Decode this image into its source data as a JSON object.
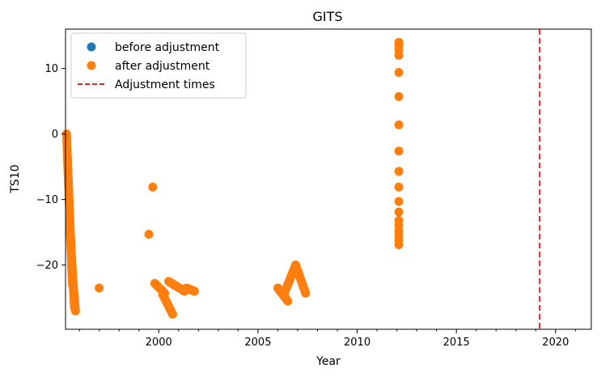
{
  "chart_data": {
    "type": "scatter",
    "title": "GITS",
    "xlabel": "Year",
    "ylabel": "TS10",
    "xlim": [
      1995.3,
      2021.8
    ],
    "ylim": [
      -29.8,
      16
    ],
    "x_ticks": [
      2000,
      2005,
      2010,
      2015,
      2020
    ],
    "y_ticks": [
      -20,
      -10,
      0,
      10
    ],
    "x_minor_tick_step": 1,
    "grid": false,
    "legend_position": "top-left",
    "colors": {
      "before": "#1f77b4",
      "after": "#ff7f0e",
      "adjustment": "#d62728"
    },
    "legend": [
      {
        "label": "before adjustment",
        "marker": "circle",
        "color": "#1f77b4"
      },
      {
        "label": "after adjustment",
        "marker": "circle",
        "color": "#ff7f0e"
      },
      {
        "label": "Adjustment times",
        "marker": "dashed-line",
        "color": "#d62728"
      }
    ],
    "adjustment_times": [
      2019.2
    ],
    "segments": [
      {
        "x_start": 1995.35,
        "x_end": 1995.65,
        "y_start": 0,
        "y_end": -23,
        "n": 60
      },
      {
        "x_start": 1995.5,
        "x_end": 1995.75,
        "y_start": -13,
        "y_end": -26.5,
        "n": 40
      },
      {
        "x_start": 1995.6,
        "x_end": 1995.8,
        "y_start": -20,
        "y_end": -27,
        "n": 30
      },
      {
        "x_start": 2000.2,
        "x_end": 2000.7,
        "y_start": -24.5,
        "y_end": -27.5,
        "n": 12
      },
      {
        "x_start": 1999.8,
        "x_end": 2000.3,
        "y_start": -22.8,
        "y_end": -24.3,
        "n": 10
      },
      {
        "x_start": 2000.5,
        "x_end": 2001.3,
        "y_start": -22.5,
        "y_end": -24,
        "n": 18
      },
      {
        "x_start": 2001.4,
        "x_end": 2001.8,
        "y_start": -23.5,
        "y_end": -24,
        "n": 10
      },
      {
        "x_start": 2006.0,
        "x_end": 2006.5,
        "y_start": -23.5,
        "y_end": -25.5,
        "n": 20
      },
      {
        "x_start": 2006.3,
        "x_end": 2006.9,
        "y_start": -24.5,
        "y_end": -20,
        "n": 20
      },
      {
        "x_start": 2006.9,
        "x_end": 2007.4,
        "y_start": -20,
        "y_end": -24.3,
        "n": 20
      }
    ],
    "points": [
      {
        "x": 1997.0,
        "y": -23.5
      },
      {
        "x": 1999.5,
        "y": -15.3
      },
      {
        "x": 1999.7,
        "y": -8.1
      },
      {
        "x": 2012.1,
        "y": 14.0
      },
      {
        "x": 2012.1,
        "y": 13.5
      },
      {
        "x": 2012.1,
        "y": 12.8
      },
      {
        "x": 2012.1,
        "y": 12.0
      },
      {
        "x": 2012.1,
        "y": 9.4
      },
      {
        "x": 2012.1,
        "y": 5.7
      },
      {
        "x": 2012.1,
        "y": 1.4
      },
      {
        "x": 2012.1,
        "y": -2.6
      },
      {
        "x": 2012.1,
        "y": -5.7
      },
      {
        "x": 2012.1,
        "y": -8.1
      },
      {
        "x": 2012.1,
        "y": -10.3
      },
      {
        "x": 2012.1,
        "y": -11.9
      },
      {
        "x": 2012.1,
        "y": -13.2
      },
      {
        "x": 2012.1,
        "y": -14.0
      },
      {
        "x": 2012.1,
        "y": -14.8
      },
      {
        "x": 2012.1,
        "y": -15.5
      },
      {
        "x": 2012.1,
        "y": -16.2
      },
      {
        "x": 2012.1,
        "y": -16.9
      }
    ]
  }
}
